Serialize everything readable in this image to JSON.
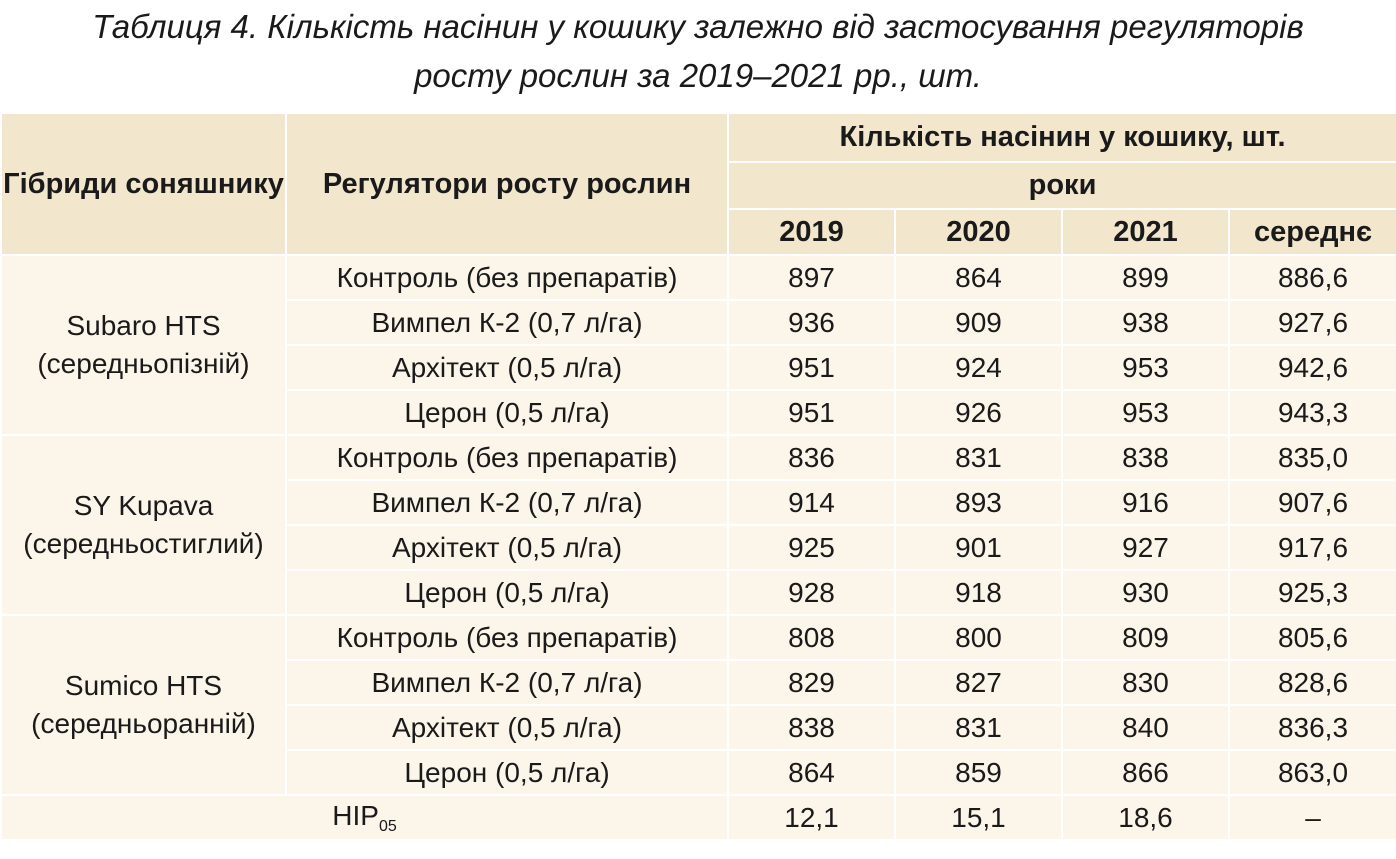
{
  "caption": {
    "line1": "Таблиця 4. Кількість насінин у кошику залежно від застосування регуляторів",
    "line2": "росту рослин за 2019–2021 рр., шт."
  },
  "header": {
    "hybrids": "Гібриди соняшнику",
    "regulators": "Регулятори росту рослин",
    "count": "Кількість насінин у кошику, шт.",
    "years": "роки",
    "y2019": "2019",
    "y2020": "2020",
    "y2021": "2021",
    "mean": "середнє"
  },
  "groups": [
    {
      "hybrid_name": "Subaro HTS",
      "hybrid_type": "(середньопізній)",
      "rows": [
        {
          "regulator": "Контроль (без препаратів)",
          "v2019": "897",
          "v2020": "864",
          "v2021": "899",
          "mean": "886,6"
        },
        {
          "regulator": "Вимпел К-2 (0,7 л/га)",
          "v2019": "936",
          "v2020": "909",
          "v2021": "938",
          "mean": "927,6"
        },
        {
          "regulator": "Архітект (0,5 л/га)",
          "v2019": "951",
          "v2020": "924",
          "v2021": "953",
          "mean": "942,6"
        },
        {
          "regulator": "Церон (0,5 л/га)",
          "v2019": "951",
          "v2020": "926",
          "v2021": "953",
          "mean": "943,3"
        }
      ]
    },
    {
      "hybrid_name": "SY Kupava",
      "hybrid_type": "(середньостиглий)",
      "rows": [
        {
          "regulator": "Контроль (без препаратів)",
          "v2019": "836",
          "v2020": "831",
          "v2021": "838",
          "mean": "835,0"
        },
        {
          "regulator": "Вимпел К-2 (0,7 л/га)",
          "v2019": "914",
          "v2020": "893",
          "v2021": "916",
          "mean": "907,6"
        },
        {
          "regulator": "Архітект (0,5 л/га)",
          "v2019": "925",
          "v2020": "901",
          "v2021": "927",
          "mean": "917,6"
        },
        {
          "regulator": "Церон (0,5 л/га)",
          "v2019": "928",
          "v2020": "918",
          "v2021": "930",
          "mean": "925,3"
        }
      ]
    },
    {
      "hybrid_name": "Sumico HTS",
      "hybrid_type": "(середньоранній)",
      "rows": [
        {
          "regulator": "Контроль (без препаратів)",
          "v2019": "808",
          "v2020": "800",
          "v2021": "809",
          "mean": "805,6"
        },
        {
          "regulator": "Вимпел К-2 (0,7 л/га)",
          "v2019": "829",
          "v2020": "827",
          "v2021": "830",
          "mean": "828,6"
        },
        {
          "regulator": "Архітект (0,5 л/га)",
          "v2019": "838",
          "v2020": "831",
          "v2021": "840",
          "mean": "836,3"
        },
        {
          "regulator": "Церон (0,5 л/га)",
          "v2019": "864",
          "v2020": "859",
          "v2021": "866",
          "mean": "863,0"
        }
      ]
    }
  ],
  "nir": {
    "label": "НІР",
    "subscript": "05",
    "v2019": "12,1",
    "v2020": "15,1",
    "v2021": "18,6",
    "mean": "–"
  },
  "colors": {
    "header_bg": "#f2e6cd",
    "body_bg": "#fbf5ea",
    "grid": "#ffffff"
  }
}
